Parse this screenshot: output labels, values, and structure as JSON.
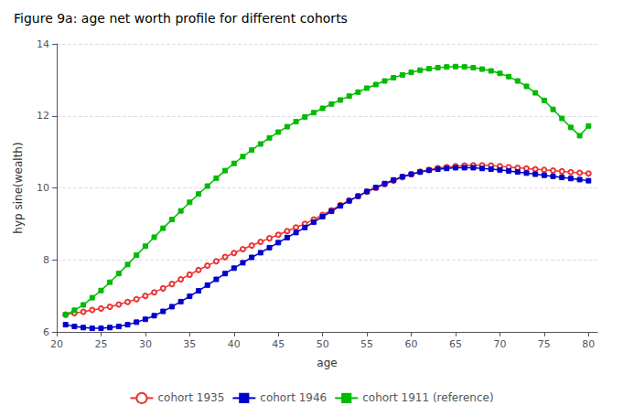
{
  "chart_data": {
    "type": "line",
    "title": "Figure 9a: age net worth profile for different cohorts",
    "xlabel": "age",
    "ylabel": "hyp sine(wealth)",
    "xlim": [
      20,
      81
    ],
    "ylim": [
      6,
      14
    ],
    "xticks": [
      20,
      25,
      30,
      35,
      40,
      45,
      50,
      55,
      60,
      65,
      70,
      75,
      80
    ],
    "yticks": [
      6,
      8,
      10,
      12,
      14
    ],
    "grid": true,
    "legend": "bottom",
    "x": [
      21,
      22,
      23,
      24,
      25,
      26,
      27,
      28,
      29,
      30,
      31,
      32,
      33,
      34,
      35,
      36,
      37,
      38,
      39,
      40,
      41,
      42,
      43,
      44,
      45,
      46,
      47,
      48,
      49,
      50,
      51,
      52,
      53,
      54,
      55,
      56,
      57,
      58,
      59,
      60,
      61,
      62,
      63,
      64,
      65,
      66,
      67,
      68,
      69,
      70,
      71,
      72,
      73,
      74,
      75,
      76,
      77,
      78,
      79,
      80
    ],
    "series": [
      {
        "name": "cohort 1935",
        "color": "#ee3333",
        "marker": "open_circle",
        "values": [
          6.48,
          6.52,
          6.56,
          6.61,
          6.65,
          6.7,
          6.76,
          6.83,
          6.91,
          7.0,
          7.1,
          7.21,
          7.33,
          7.46,
          7.59,
          7.72,
          7.84,
          7.96,
          8.08,
          8.19,
          8.3,
          8.4,
          8.5,
          8.6,
          8.7,
          8.8,
          8.9,
          9.0,
          9.12,
          9.25,
          9.38,
          9.52,
          9.65,
          9.77,
          9.89,
          10.0,
          10.1,
          10.2,
          10.3,
          10.38,
          10.45,
          10.5,
          10.55,
          10.58,
          10.6,
          10.62,
          10.63,
          10.63,
          10.62,
          10.6,
          10.58,
          10.56,
          10.54,
          10.52,
          10.5,
          10.48,
          10.46,
          10.44,
          10.42,
          10.4
        ]
      },
      {
        "name": "cohort 1946",
        "color": "#0000cc",
        "marker": "square",
        "values": [
          6.2,
          6.15,
          6.12,
          6.1,
          6.1,
          6.12,
          6.15,
          6.2,
          6.27,
          6.35,
          6.45,
          6.57,
          6.7,
          6.84,
          6.99,
          7.14,
          7.3,
          7.46,
          7.62,
          7.77,
          7.92,
          8.07,
          8.2,
          8.34,
          8.48,
          8.62,
          8.76,
          8.9,
          9.05,
          9.2,
          9.35,
          9.5,
          9.64,
          9.77,
          9.9,
          10.01,
          10.12,
          10.22,
          10.31,
          10.38,
          10.44,
          10.49,
          10.52,
          10.54,
          10.56,
          10.56,
          10.56,
          10.54,
          10.52,
          10.5,
          10.47,
          10.44,
          10.41,
          10.38,
          10.35,
          10.32,
          10.29,
          10.26,
          10.23,
          10.2
        ]
      },
      {
        "name": "cohort 1911 (reference)",
        "color": "#00bb00",
        "marker": "square",
        "values": [
          6.48,
          6.6,
          6.75,
          6.95,
          7.15,
          7.38,
          7.62,
          7.87,
          8.13,
          8.38,
          8.63,
          8.88,
          9.12,
          9.36,
          9.6,
          9.83,
          10.05,
          10.27,
          10.48,
          10.68,
          10.87,
          11.05,
          11.22,
          11.39,
          11.55,
          11.7,
          11.84,
          11.97,
          12.09,
          12.21,
          12.33,
          12.44,
          12.55,
          12.66,
          12.77,
          12.87,
          12.97,
          13.06,
          13.14,
          13.21,
          13.27,
          13.31,
          13.34,
          13.36,
          13.37,
          13.36,
          13.34,
          13.3,
          13.25,
          13.18,
          13.09,
          12.97,
          12.82,
          12.64,
          12.43,
          12.18,
          11.93,
          11.68,
          11.45,
          11.72
        ]
      }
    ]
  }
}
